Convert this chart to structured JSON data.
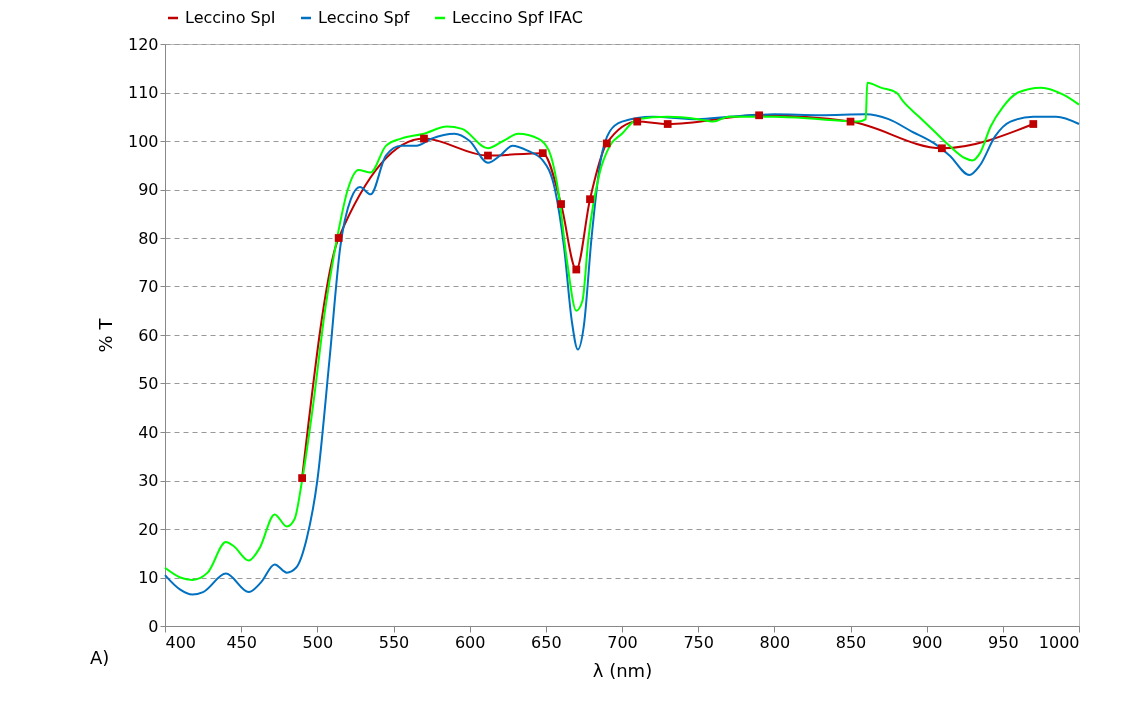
{
  "chart_data": {
    "type": "line",
    "xlabel": "λ (nm)",
    "ylabel": "% T",
    "legend": "top",
    "grid": "y",
    "line_style": "solid",
    "xlim": [
      400,
      1000
    ],
    "xticks": [
      400,
      450,
      500,
      550,
      600,
      650,
      700,
      750,
      800,
      850,
      900,
      950,
      1000
    ],
    "ylim": [
      0,
      120
    ],
    "yticks": [
      0,
      10,
      20,
      30,
      40,
      50,
      60,
      70,
      80,
      90,
      100,
      110,
      120
    ],
    "annotations": [
      "A)"
    ],
    "series": [
      {
        "name": "Leccino SpI",
        "color": "#c00000",
        "marker": "square",
        "x": [
          490,
          514,
          570,
          612,
          648,
          660,
          670,
          679,
          690,
          710,
          730,
          790,
          850,
          910,
          970
        ],
        "values": [
          30.5,
          80,
          100.5,
          97,
          97.5,
          87,
          73.5,
          88,
          99.5,
          104,
          103.5,
          105.3,
          104,
          98.5,
          103.5
        ]
      },
      {
        "name": "Leccino Spf",
        "color": "#0070c0",
        "marker": "none",
        "x": [
          400,
          410,
          418,
          425,
          440,
          455,
          463,
          472,
          480,
          486,
          493,
          500,
          508,
          515,
          522,
          528,
          535,
          545,
          555,
          565,
          575,
          590,
          600,
          612,
          620,
          628,
          638,
          648,
          656,
          662,
          667,
          671,
          675,
          680,
          686,
          692,
          700,
          720,
          750,
          770,
          800,
          830,
          860,
          875,
          890,
          905,
          915,
          928,
          935,
          945,
          955,
          970,
          985,
          1000
        ],
        "values": [
          10.5,
          7.5,
          6.5,
          7,
          10.8,
          7,
          9,
          12.7,
          11,
          12,
          18,
          30,
          55,
          78,
          88,
          90.5,
          89,
          97,
          99,
          99,
          100.5,
          101.5,
          100,
          95.5,
          97,
          99,
          98,
          96,
          90,
          78,
          63,
          57,
          62,
          80,
          96,
          102,
          104,
          105,
          104.5,
          105,
          105.5,
          105.3,
          105.5,
          104.5,
          102,
          99.5,
          97,
          93,
          95,
          101,
          104,
          105,
          105,
          103.5
        ]
      },
      {
        "name": "Leccino Spf IFAC",
        "color": "#00ff00",
        "marker": "none",
        "x": [
          400,
          410,
          418,
          428,
          440,
          445,
          455,
          462,
          472,
          480,
          485,
          490,
          497,
          505,
          513,
          520,
          527,
          535,
          545,
          555,
          570,
          585,
          595,
          612,
          622,
          632,
          645,
          652,
          658,
          664,
          670,
          674,
          678,
          685,
          692,
          700,
          710,
          730,
          750,
          760,
          770,
          800,
          830,
          855,
          860,
          861,
          870,
          880,
          885,
          895,
          905,
          915,
          925,
          930,
          935,
          942,
          950,
          960,
          975,
          990,
          1000
        ],
        "values": [
          12,
          10,
          9.5,
          11,
          17.3,
          16.5,
          13.5,
          16,
          23,
          20.5,
          22,
          30,
          45,
          65,
          80,
          90,
          94,
          93.5,
          99,
          100.5,
          101.5,
          103,
          102.5,
          98.5,
          100,
          101.5,
          100.5,
          98,
          90,
          75,
          65,
          67,
          80,
          93,
          99,
          101.5,
          104.5,
          105,
          104.5,
          104,
          105,
          105,
          104.5,
          104,
          104.5,
          112,
          111,
          110,
          108,
          105,
          102,
          99,
          96.5,
          96,
          97.5,
          103,
          107,
          110,
          111,
          109.5,
          107.5
        ]
      }
    ]
  }
}
